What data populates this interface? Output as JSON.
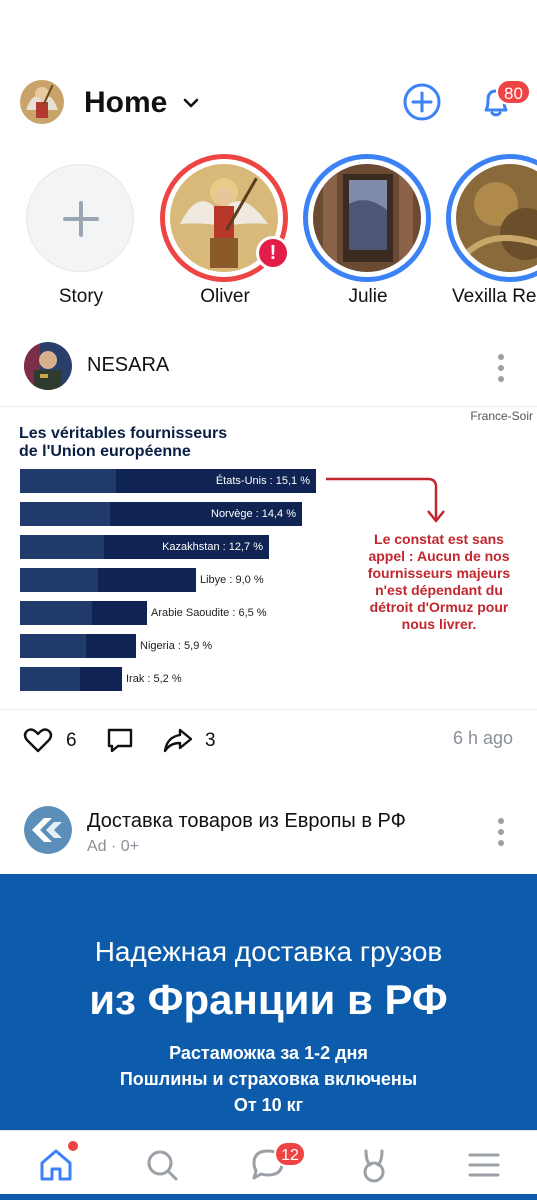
{
  "header": {
    "title": "Home",
    "notifications_count": "80"
  },
  "stories": [
    {
      "label": "Story",
      "type": "add"
    },
    {
      "label": "Oliver",
      "type": "unseen-alert"
    },
    {
      "label": "Julie",
      "type": "seen"
    },
    {
      "label": "Vexilla Re",
      "type": "seen"
    }
  ],
  "post": {
    "author": "NESARA",
    "image": {
      "source": "France-Soir",
      "title_line1": "Les véritables fournisseurs",
      "title_line2": "de l'Union européenne",
      "note": "Le constat est sans appel : Aucun de nos fournisseurs majeurs n'est dépendant du détroit d'Ormuz pour nous livrer.",
      "bars": [
        {
          "label": "États-Unis : 15,1 %",
          "value": 15.1
        },
        {
          "label": "Norvège : 14,4 %",
          "value": 14.4
        },
        {
          "label": "Kazakhstan : 12,7 %",
          "value": 12.7
        },
        {
          "label": "Libye : 9,0 %",
          "value": 9.0
        },
        {
          "label": "Arabie Saoudite : 6,5 %",
          "value": 6.5
        },
        {
          "label": "Nigeria : 5,9 %",
          "value": 5.9
        },
        {
          "label": "Irak : 5,2 %",
          "value": 5.2
        }
      ]
    },
    "likes": "6",
    "shares": "3",
    "time_ago": "6 h ago"
  },
  "ad": {
    "title": "Доставка товаров из Европы в РФ",
    "subtitle": "Ad · 0+",
    "banner_line1": "Надежная доставка грузов",
    "banner_line2": "из Франции в РФ",
    "banner_line3a": "Растаможка за 1-2 дня",
    "banner_line3b": "Пошлины и страховка включены",
    "banner_line3c": "От 10 кг"
  },
  "bottom_nav": {
    "messages_count": "12"
  },
  "colors": {
    "accent": "#3b82f6",
    "badge": "#ef4444",
    "ad_blue": "#0d5cab"
  }
}
